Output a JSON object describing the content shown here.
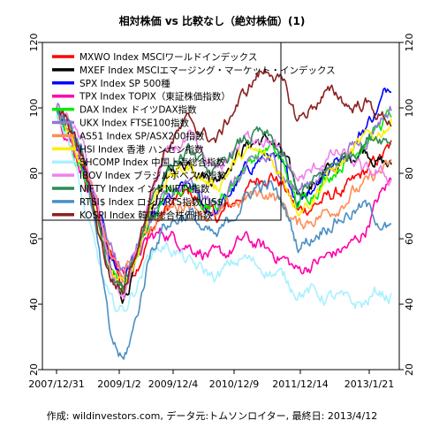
{
  "chart_data": {
    "type": "line",
    "title": "相対株価 vs 比較なし（絶対株価）(1)",
    "caption": "作成: wildinvestors.com, データ元:トムソンロイター, 最終日: 2013/4/12",
    "x_tick_labels": [
      "2007/12/31",
      "2009/1/2",
      "2009/12/4",
      "2010/12/9",
      "2011/12/14",
      "2013/1/21"
    ],
    "y_ticks": [
      20,
      40,
      60,
      80,
      100,
      120
    ],
    "ylim": [
      20,
      120
    ],
    "grid": false,
    "legend_position": "top-left",
    "series": [
      {
        "name": "MXWO Index MSCIワールドインデックス",
        "color": "#ff0000",
        "shape": [
          100,
          92,
          80,
          70,
          55,
          45,
          52,
          62,
          68,
          72,
          74,
          70,
          66,
          70,
          74,
          78,
          80,
          76,
          68,
          70,
          72,
          74,
          76,
          80,
          84,
          88
        ]
      },
      {
        "name": "MXEF Index MSCIエマージング・マーケット・インデックス",
        "color": "#000000",
        "shape": [
          100,
          94,
          85,
          70,
          50,
          42,
          52,
          68,
          78,
          82,
          84,
          80,
          78,
          84,
          88,
          90,
          90,
          85,
          74,
          76,
          80,
          82,
          85,
          88,
          84,
          82
        ]
      },
      {
        "name": "SPX Index SP 500種",
        "color": "#0000ff",
        "shape": [
          100,
          92,
          82,
          70,
          55,
          48,
          56,
          64,
          70,
          74,
          76,
          70,
          68,
          74,
          80,
          84,
          86,
          80,
          72,
          76,
          80,
          84,
          88,
          94,
          100,
          108
        ]
      },
      {
        "name": "TPX Index TOPIX（東証株価指数）",
        "color": "#ff00aa",
        "shape": [
          100,
          90,
          80,
          70,
          55,
          50,
          55,
          60,
          62,
          60,
          58,
          56,
          54,
          56,
          60,
          58,
          56,
          54,
          50,
          52,
          54,
          56,
          58,
          62,
          72,
          78
        ]
      },
      {
        "name": "DAX Index ドイツDAX指数",
        "color": "#00ee00",
        "shape": [
          100,
          90,
          80,
          65,
          50,
          44,
          55,
          65,
          72,
          75,
          76,
          72,
          70,
          76,
          82,
          86,
          88,
          82,
          70,
          74,
          78,
          82,
          86,
          90,
          94,
          98
        ]
      },
      {
        "name": "UKX Index FTSE100指数",
        "color": "#9a75d4",
        "shape": [
          100,
          92,
          84,
          72,
          58,
          50,
          58,
          66,
          72,
          74,
          76,
          72,
          70,
          76,
          80,
          84,
          84,
          80,
          74,
          78,
          80,
          84,
          88,
          90,
          96,
          100
        ]
      },
      {
        "name": "AS51 Index SP/ASX200指数",
        "color": "#ff8c55",
        "shape": [
          100,
          92,
          84,
          70,
          55,
          48,
          56,
          64,
          68,
          70,
          72,
          68,
          66,
          70,
          72,
          74,
          74,
          70,
          64,
          66,
          68,
          70,
          74,
          76,
          80,
          82
        ]
      },
      {
        "name": "HSI Index 香港 ハンセン指数",
        "color": "#ffee00",
        "shape": [
          100,
          92,
          82,
          65,
          50,
          45,
          55,
          70,
          78,
          80,
          82,
          78,
          76,
          82,
          86,
          86,
          84,
          78,
          70,
          72,
          78,
          82,
          86,
          90,
          92,
          96
        ]
      },
      {
        "name": "SHCOMP Index 中国上海総合指数",
        "color": "#aaf0ff",
        "shape": [
          100,
          90,
          70,
          55,
          40,
          38,
          46,
          56,
          58,
          56,
          52,
          50,
          48,
          52,
          54,
          52,
          50,
          48,
          44,
          44,
          42,
          42,
          40,
          40,
          44,
          42
        ]
      },
      {
        "name": "IBOV Index ブラジルボベスパ指数",
        "color": "#ee82ee",
        "shape": [
          100,
          96,
          88,
          70,
          50,
          42,
          56,
          72,
          84,
          88,
          90,
          84,
          80,
          86,
          90,
          92,
          90,
          84,
          78,
          80,
          84,
          86,
          84,
          80,
          80,
          78
        ]
      },
      {
        "name": "NIFTY Index インドNIFTY指数",
        "color": "#2e8b57",
        "shape": [
          100,
          94,
          84,
          65,
          48,
          44,
          56,
          72,
          80,
          84,
          86,
          82,
          80,
          86,
          90,
          92,
          90,
          84,
          74,
          76,
          80,
          84,
          86,
          90,
          92,
          90
        ]
      },
      {
        "name": "RTSI$ Index ロシアRTS指数(US$)",
        "color": "#4a8fc4",
        "shape": [
          100,
          96,
          86,
          60,
          30,
          22,
          36,
          56,
          64,
          66,
          68,
          62,
          60,
          66,
          72,
          76,
          76,
          70,
          58,
          60,
          64,
          66,
          68,
          70,
          66,
          62
        ]
      },
      {
        "name": "KOSPI Index 韓国総合株価指数",
        "color": "#8b2020",
        "shape": [
          100,
          94,
          84,
          65,
          48,
          44,
          58,
          74,
          86,
          92,
          96,
          92,
          90,
          98,
          104,
          110,
          112,
          106,
          96,
          100,
          104,
          104,
          100,
          102,
          98,
          96
        ]
      }
    ]
  }
}
